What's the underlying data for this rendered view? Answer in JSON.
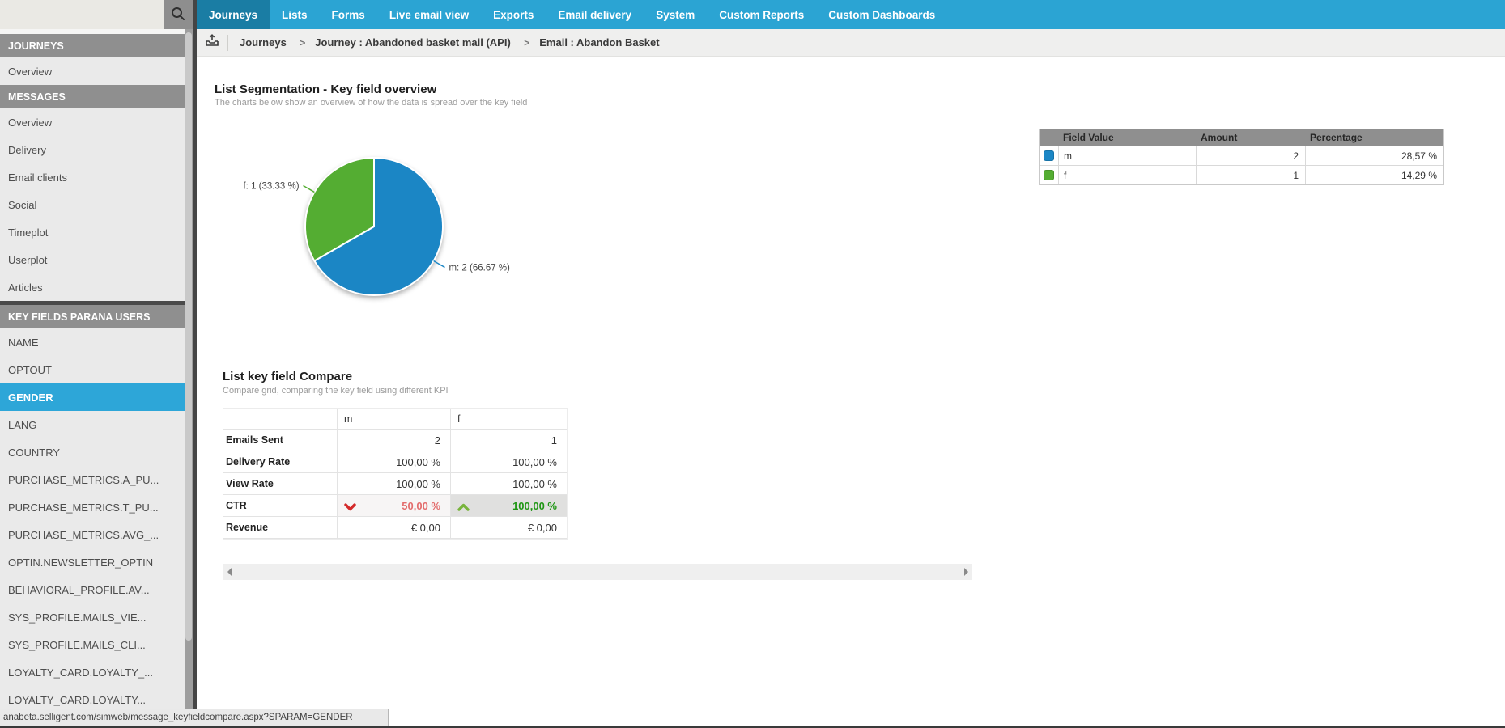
{
  "topbar": {
    "search_placeholder": "",
    "nav_items": [
      {
        "label": "Journeys",
        "active": true
      },
      {
        "label": "Lists"
      },
      {
        "label": "Forms"
      },
      {
        "label": "Live email view"
      },
      {
        "label": "Exports"
      },
      {
        "label": "Email delivery"
      },
      {
        "label": "System"
      },
      {
        "label": "Custom Reports"
      },
      {
        "label": "Custom Dashboards"
      }
    ]
  },
  "breadcrumb": {
    "items": [
      {
        "label": "Journeys"
      },
      {
        "label": "Journey : Abandoned basket mail (API)"
      },
      {
        "label": "Email : Abandon Basket"
      }
    ],
    "separator": ">"
  },
  "sidebar": {
    "rows": [
      {
        "header": true,
        "label": "JOURNEYS"
      },
      {
        "label": "Overview"
      },
      {
        "header": true,
        "label": "MESSAGES"
      },
      {
        "label": "Overview"
      },
      {
        "label": "Delivery"
      },
      {
        "label": "Email clients"
      },
      {
        "label": "Social"
      },
      {
        "label": "Timeplot"
      },
      {
        "label": "Userplot"
      },
      {
        "label": "Articles"
      },
      {
        "header": true,
        "divider": true,
        "label": "KEY FIELDS PARANA USERS"
      },
      {
        "label": "NAME"
      },
      {
        "label": "OPTOUT"
      },
      {
        "label": "GENDER",
        "selected": true
      },
      {
        "label": "LANG"
      },
      {
        "label": "COUNTRY"
      },
      {
        "label": "PURCHASE_METRICS.A_PU..."
      },
      {
        "label": "PURCHASE_METRICS.T_PU..."
      },
      {
        "label": "PURCHASE_METRICS.AVG_..."
      },
      {
        "label": "OPTIN.NEWSLETTER_OPTIN"
      },
      {
        "label": "BEHAVIORAL_PROFILE.AV..."
      },
      {
        "label": "SYS_PROFILE.MAILS_VIE..."
      },
      {
        "label": "SYS_PROFILE.MAILS_CLI..."
      },
      {
        "label": "LOYALTY_CARD.LOYALTY_..."
      },
      {
        "label": "LOYALTY_CARD.LOYALTY..."
      }
    ]
  },
  "segmentation": {
    "title": "List Segmentation - Key field overview",
    "subtitle": "The charts below show an overview of how the data is spread over the key field"
  },
  "chart_data": {
    "type": "pie",
    "title": "List Segmentation - Key field overview",
    "legend_position": "none",
    "series": [
      {
        "label": "m",
        "value": 2,
        "percent": 66.67,
        "annotation": "m: 2 (66.67 %)",
        "color": "#1b86c5"
      },
      {
        "label": "f",
        "value": 1,
        "percent": 33.33,
        "annotation": "f: 1 (33.33 %)",
        "color": "#54ad32"
      }
    ]
  },
  "field_table": {
    "headers": [
      "Field Value",
      "Amount",
      "Percentage"
    ],
    "rows": [
      {
        "swatch": "#1b86c5",
        "field": "m",
        "amount": "2",
        "percentage": "28,57 %"
      },
      {
        "swatch": "#54ad32",
        "field": "f",
        "amount": "1",
        "percentage": "14,29 %"
      }
    ]
  },
  "compare": {
    "title": "List key field Compare",
    "subtitle": "Compare grid, comparing the key field using different KPI"
  },
  "compare_table": {
    "columns": [
      {
        "label": "m"
      },
      {
        "label": "f"
      }
    ],
    "rows": [
      {
        "label": "Emails Sent",
        "m": {
          "value": "2"
        },
        "f": {
          "value": "1"
        }
      },
      {
        "label": "Delivery Rate",
        "m": {
          "value": "100,00 %"
        },
        "f": {
          "value": "100,00 %"
        }
      },
      {
        "label": "View Rate",
        "m": {
          "value": "100,00 %"
        },
        "f": {
          "value": "100,00 %"
        }
      },
      {
        "label": "CTR",
        "m": {
          "value": "50,00 %",
          "down": true
        },
        "f": {
          "value": "100,00 %",
          "up": true,
          "hl": true
        }
      },
      {
        "label": "Revenue",
        "m": {
          "value": "€ 0,00"
        },
        "f": {
          "value": "€ 0,00"
        }
      }
    ]
  },
  "statusbar": {
    "url": "anabeta.selligent.com/simweb/message_keyfieldcompare.aspx?SPARAM=GENDER"
  },
  "colors": {
    "nav": "#2ba4d3",
    "nav_active": "#1a7da4",
    "selected_item": "#2da6d8",
    "pie_blue": "#1b86c5",
    "pie_green": "#54ad32",
    "ctr_down_text": "#e36c6c",
    "ctr_up_text": "#1f9614"
  }
}
